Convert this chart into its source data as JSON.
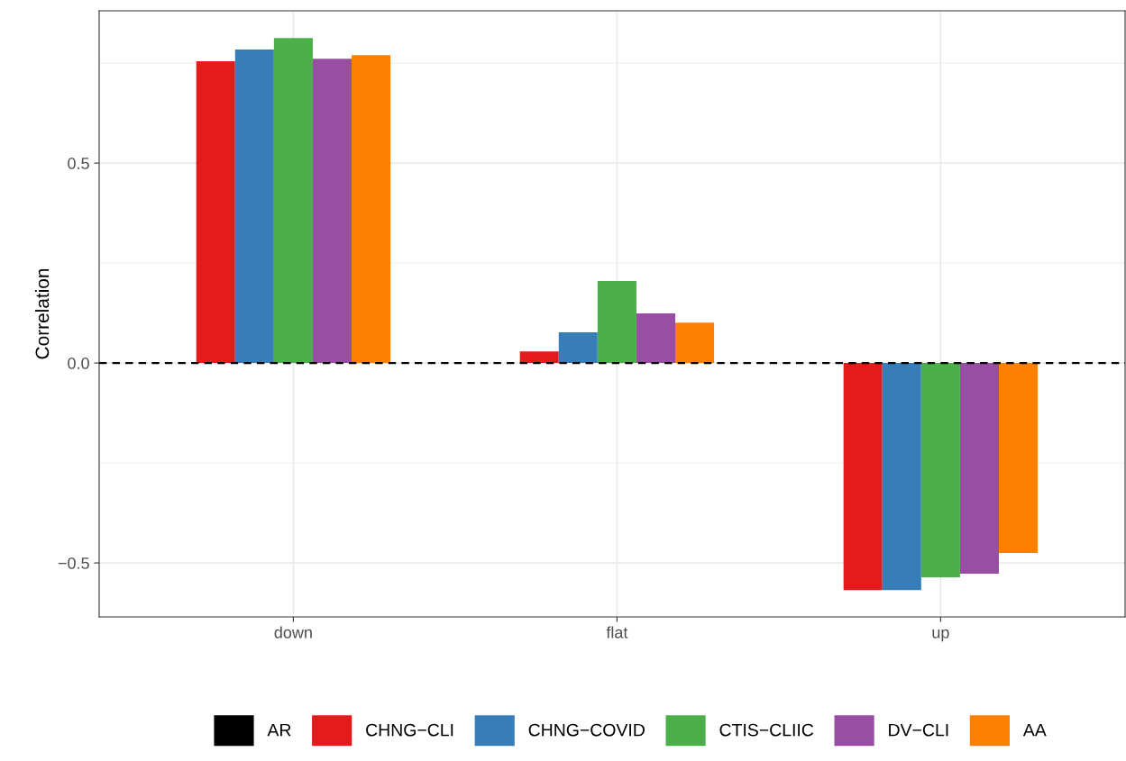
{
  "chart_data": {
    "type": "bar",
    "ylabel": "Correlation",
    "categories": [
      "down",
      "flat",
      "up"
    ],
    "series": [
      {
        "name": "AR",
        "color": "#000000",
        "values": [
          null,
          null,
          null
        ]
      },
      {
        "name": "CHNG−CLI",
        "color": "#e41a1c",
        "values": [
          0.755,
          0.029,
          -0.568
        ]
      },
      {
        "name": "CHNG−COVID",
        "color": "#377eb8",
        "values": [
          0.784,
          0.077,
          -0.568
        ]
      },
      {
        "name": "CTIS−CLIIC",
        "color": "#4daf4a",
        "values": [
          0.813,
          0.205,
          -0.536
        ]
      },
      {
        "name": "DV−CLI",
        "color": "#984ea3",
        "values": [
          0.761,
          0.124,
          -0.527
        ]
      },
      {
        "name": "AA",
        "color": "#ff7f00",
        "values": [
          0.77,
          0.101,
          -0.475
        ]
      }
    ],
    "ylim": [
      -0.635,
      0.881
    ],
    "yticks": [
      {
        "value": -0.5,
        "label": "−0.5"
      },
      {
        "value": 0,
        "label": "0.0"
      },
      {
        "value": 0.5,
        "label": "0.5"
      }
    ],
    "ref_lines": [
      {
        "axis": "y",
        "value": 0,
        "color": "#000000",
        "line_style": "dashed"
      }
    ],
    "grid": true,
    "legend": "bottom"
  }
}
